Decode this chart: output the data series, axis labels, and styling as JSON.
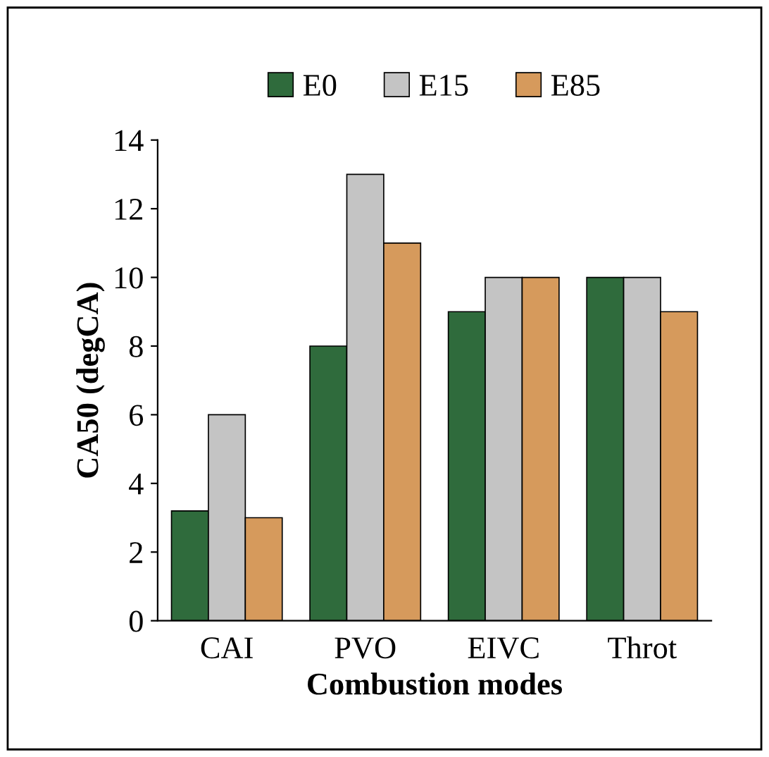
{
  "chart_data": {
    "type": "bar",
    "xlabel": "Combustion modes",
    "ylabel": "CA50 (degCA)",
    "categories": [
      "CAI",
      "PVO",
      "EIVC",
      "Throt"
    ],
    "series": [
      {
        "name": "E0",
        "color": "#2f6b3c",
        "values": [
          3.2,
          8.0,
          9.0,
          10.0
        ]
      },
      {
        "name": "E15",
        "color": "#c4c4c4",
        "values": [
          6.0,
          13.0,
          10.0,
          10.0
        ]
      },
      {
        "name": "E85",
        "color": "#d69a5c",
        "values": [
          3.0,
          11.0,
          10.0,
          9.0
        ]
      }
    ],
    "ylim": [
      0,
      14
    ],
    "yticks": [
      0,
      2,
      4,
      6,
      8,
      10,
      12,
      14
    ],
    "grid": false,
    "legend": "top"
  }
}
